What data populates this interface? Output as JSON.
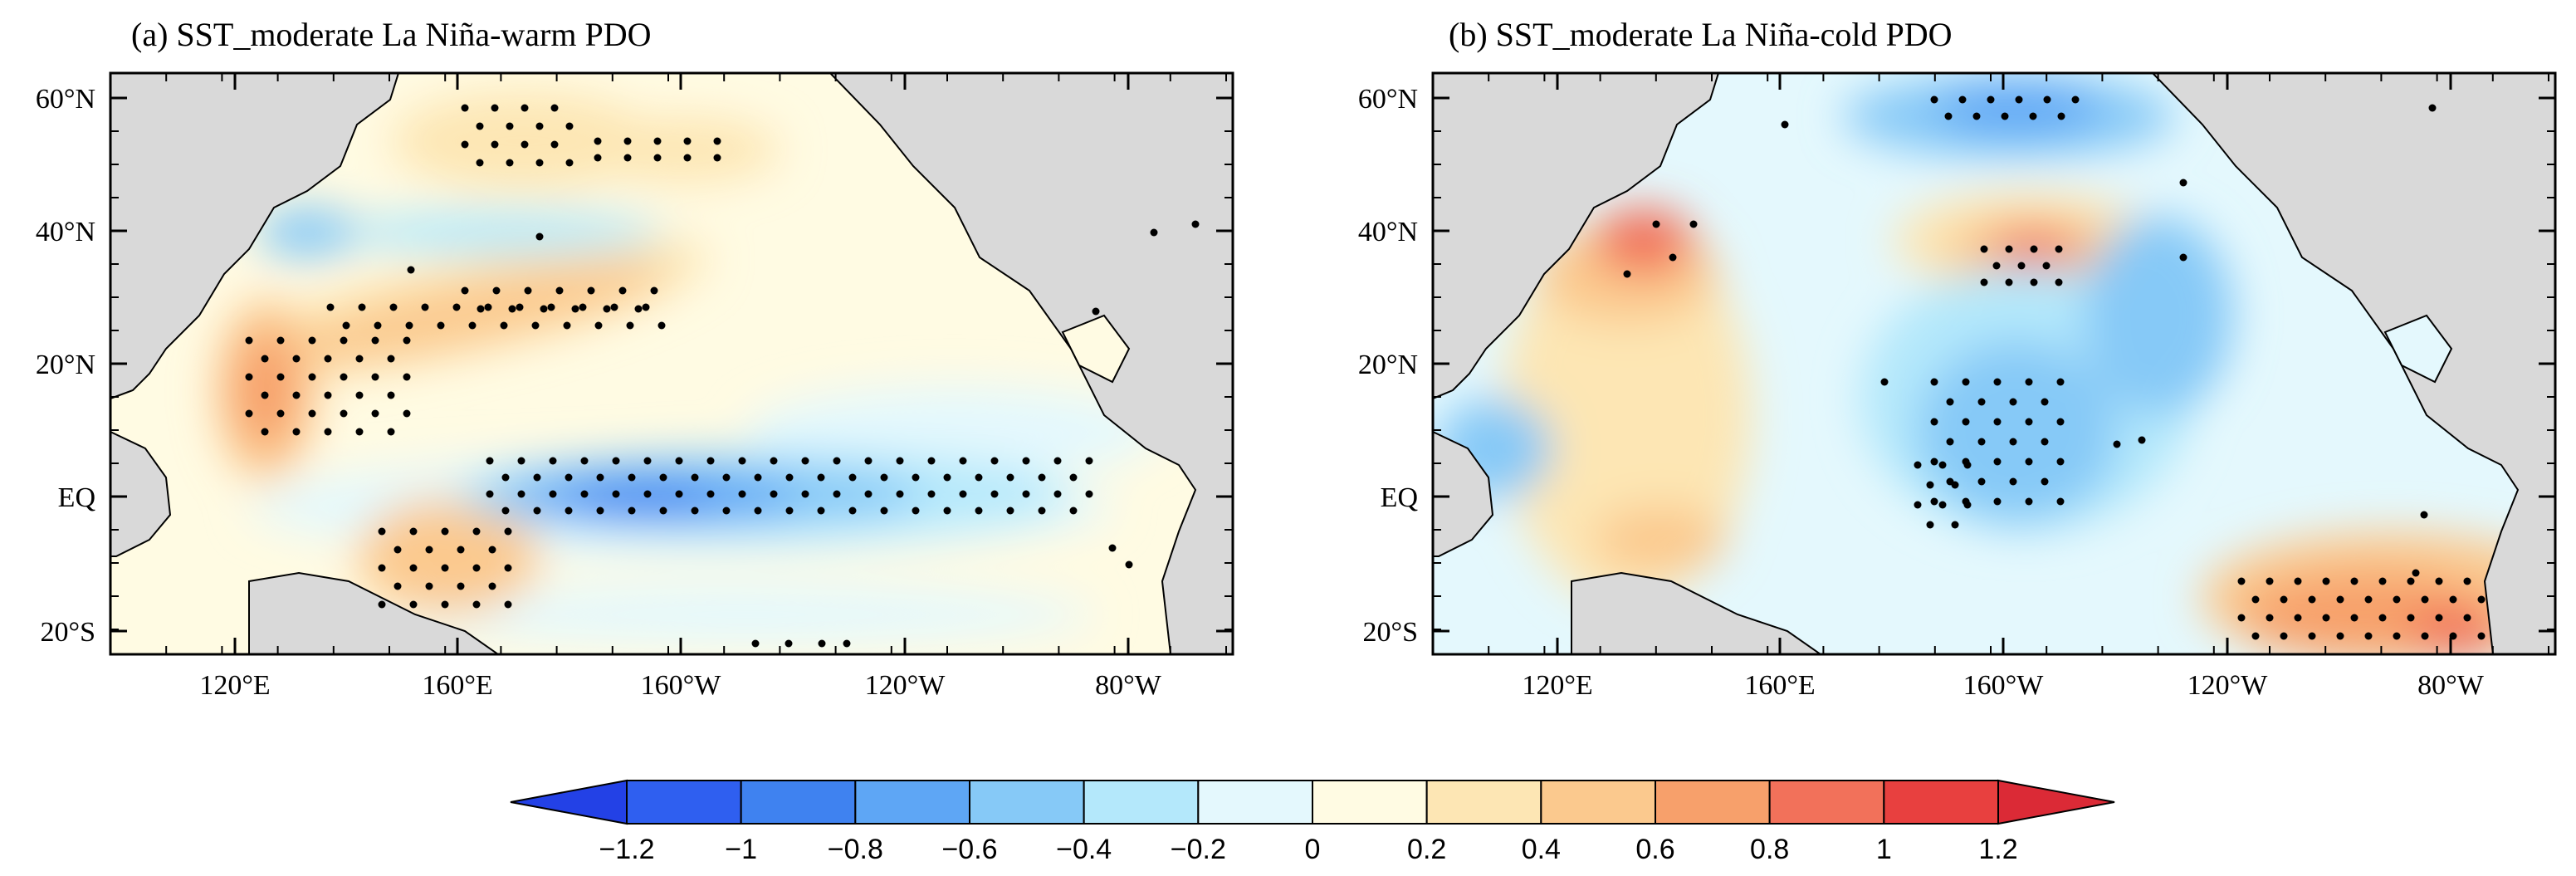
{
  "figure": {
    "colorbar": {
      "labels": [
        "−1.2",
        "−1",
        "−0.8",
        "−0.6",
        "−0.4",
        "−0.2",
        "0",
        "0.2",
        "0.4",
        "0.6",
        "0.8",
        "1",
        "1.2"
      ],
      "colors": [
        "#2f5ff0",
        "#3f82f0",
        "#5ea6f5",
        "#86c9f7",
        "#b4e8fb",
        "#e4f8fd",
        "#fffbe3",
        "#fde6b4",
        "#fbc98e",
        "#f7a06b",
        "#f2715a",
        "#e8403f"
      ],
      "under_color": "#2341e6",
      "over_color": "#db2a36"
    },
    "land_color": "#d9d9d9",
    "stipple_color": "#000000"
  },
  "panels": [
    {
      "id": "a",
      "title": "(a) SST_moderate La Niña-warm PDO",
      "x_ticks": [
        "120°E",
        "160°E",
        "160°W",
        "120°W",
        "80°W"
      ],
      "y_ticks": [
        "60°N",
        "40°N",
        "20°N",
        "EQ",
        "20°S"
      ]
    },
    {
      "id": "b",
      "title": "(b) SST_moderate La Niña-cold PDO",
      "x_ticks": [
        "120°E",
        "160°E",
        "160°W",
        "120°W",
        "80°W"
      ],
      "y_ticks": [
        "60°N",
        "40°N",
        "20°N",
        "EQ",
        "20°S"
      ]
    }
  ]
}
